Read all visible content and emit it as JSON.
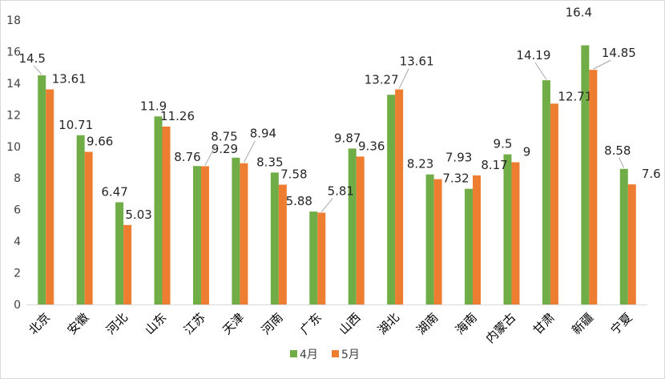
{
  "chart_data": {
    "type": "bar",
    "categories": [
      "北京",
      "安徽",
      "河北",
      "山东",
      "江苏",
      "天津",
      "河南",
      "广东",
      "山西",
      "湖北",
      "湖南",
      "海南",
      "内蒙古",
      "甘肃",
      "新疆",
      "宁夏"
    ],
    "series": [
      {
        "name": "4月",
        "color": "#70ad47",
        "values": [
          14.5,
          10.71,
          6.47,
          11.9,
          8.76,
          9.29,
          8.35,
          5.88,
          9.87,
          13.27,
          8.23,
          7.32,
          9.5,
          14.19,
          16.4,
          8.58
        ]
      },
      {
        "name": "5月",
        "color": "#ed7d31",
        "values": [
          13.61,
          9.66,
          5.03,
          11.26,
          8.75,
          8.94,
          7.58,
          5.81,
          9.36,
          13.61,
          7.93,
          8.17,
          9,
          12.71,
          14.85,
          7.6
        ]
      }
    ],
    "data_labels": {
      "4月": [
        "14.5",
        "10.71",
        "6.47",
        "11.9",
        "8.76",
        "9.29",
        "8.35",
        "5.88",
        "9.87",
        "13.27",
        "8.23",
        "7.32",
        "9.5",
        "14.19",
        "16.4",
        "8.58"
      ],
      "5月": [
        "13.61",
        "9.66",
        "5.03",
        "11.26",
        "8.75",
        "8.94",
        "7.58",
        "5.81",
        "9.36",
        "13.61",
        "7.93",
        "8.17",
        "9",
        "12.71",
        "14.85",
        "7.6"
      ]
    },
    "yticks": [
      "0",
      "2",
      "4",
      "6",
      "8",
      "10",
      "12",
      "14",
      "16",
      "18"
    ],
    "ylim": [
      0,
      18
    ],
    "grid": false,
    "legend_position": "bottom"
  }
}
